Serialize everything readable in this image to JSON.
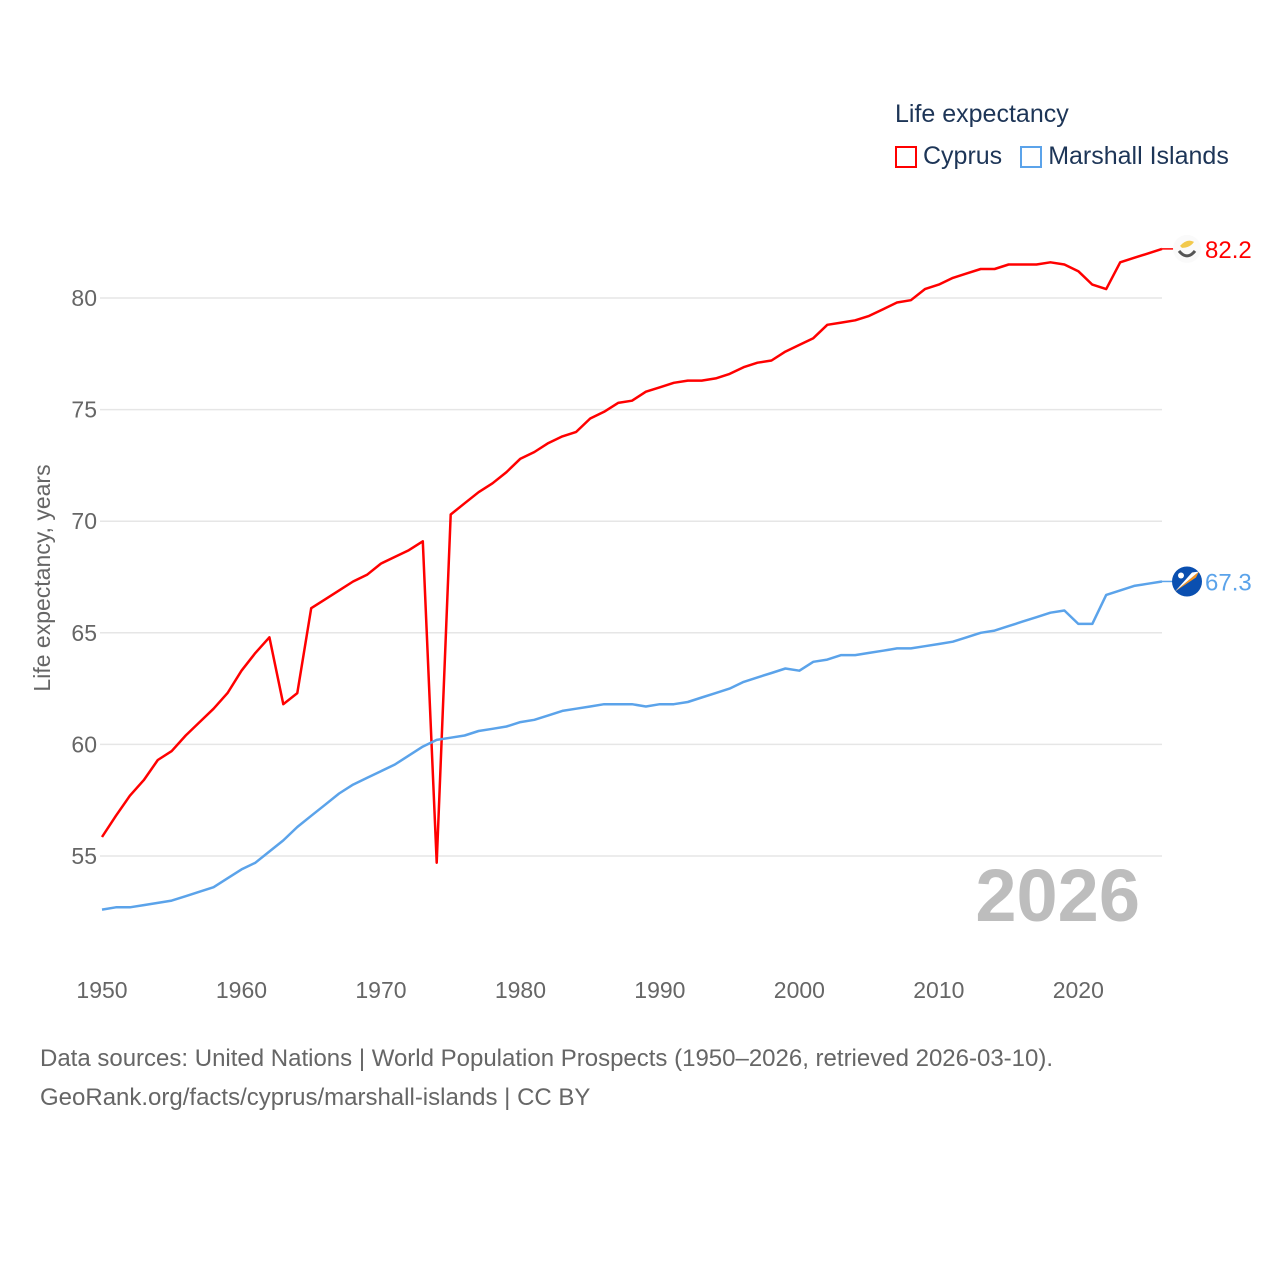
{
  "chart_data": {
    "type": "line",
    "legend_title": "Life expectancy",
    "ylabel": "Life expectancy, years",
    "xlabel": "",
    "xlim": [
      1950,
      2026
    ],
    "ylim": [
      51.5,
      83
    ],
    "yticks": [
      55,
      60,
      65,
      70,
      75,
      80
    ],
    "xticks": [
      1950,
      1960,
      1970,
      1980,
      1990,
      2000,
      2010,
      2020
    ],
    "grid": true,
    "legend_position": "top-right",
    "current_year": "2026",
    "x_start": 1950,
    "series": [
      {
        "name": "Cyprus",
        "color": "#ff0000",
        "end_label": "82.2",
        "flag_icon": "cyprus-flag-icon",
        "values": [
          55.85,
          56.8,
          57.7,
          58.4,
          59.3,
          59.7,
          60.4,
          61.0,
          61.6,
          62.3,
          63.3,
          64.1,
          64.8,
          61.8,
          62.3,
          66.1,
          66.5,
          66.9,
          67.3,
          67.6,
          68.1,
          68.4,
          68.7,
          69.1,
          54.7,
          70.3,
          70.8,
          71.3,
          71.7,
          72.2,
          72.8,
          73.1,
          73.5,
          73.8,
          74.0,
          74.6,
          74.9,
          75.3,
          75.4,
          75.8,
          76.0,
          76.2,
          76.3,
          76.3,
          76.4,
          76.6,
          76.9,
          77.1,
          77.2,
          77.6,
          77.9,
          78.2,
          78.8,
          78.9,
          79.0,
          79.2,
          79.5,
          79.8,
          79.9,
          80.4,
          80.6,
          80.9,
          81.1,
          81.3,
          81.3,
          81.5,
          81.5,
          81.5,
          81.6,
          81.5,
          81.2,
          80.6,
          80.4,
          81.6,
          81.8,
          82.0,
          82.2
        ]
      },
      {
        "name": "Marshall Islands",
        "color": "#5ba3ea",
        "end_label": "67.3",
        "flag_icon": "marshall-islands-flag-icon",
        "values": [
          52.6,
          52.7,
          52.7,
          52.8,
          52.9,
          53.0,
          53.2,
          53.4,
          53.6,
          54.0,
          54.4,
          54.7,
          55.2,
          55.7,
          56.3,
          56.8,
          57.3,
          57.8,
          58.2,
          58.5,
          58.8,
          59.1,
          59.5,
          59.9,
          60.2,
          60.3,
          60.4,
          60.6,
          60.7,
          60.8,
          61.0,
          61.1,
          61.3,
          61.5,
          61.6,
          61.7,
          61.8,
          61.8,
          61.8,
          61.7,
          61.8,
          61.8,
          61.9,
          62.1,
          62.3,
          62.5,
          62.8,
          63.0,
          63.2,
          63.4,
          63.3,
          63.7,
          63.8,
          64.0,
          64.0,
          64.1,
          64.2,
          64.3,
          64.3,
          64.4,
          64.5,
          64.6,
          64.8,
          65.0,
          65.1,
          65.3,
          65.5,
          65.7,
          65.9,
          66.0,
          65.4,
          65.4,
          66.7,
          66.9,
          67.1,
          67.2,
          67.3
        ]
      }
    ]
  },
  "footer": {
    "line1": "Data sources: United Nations | World Population Prospects (1950–2026, retrieved 2026-03-10).",
    "line2": "GeoRank.org/facts/cyprus/marshall-islands | CC BY"
  }
}
